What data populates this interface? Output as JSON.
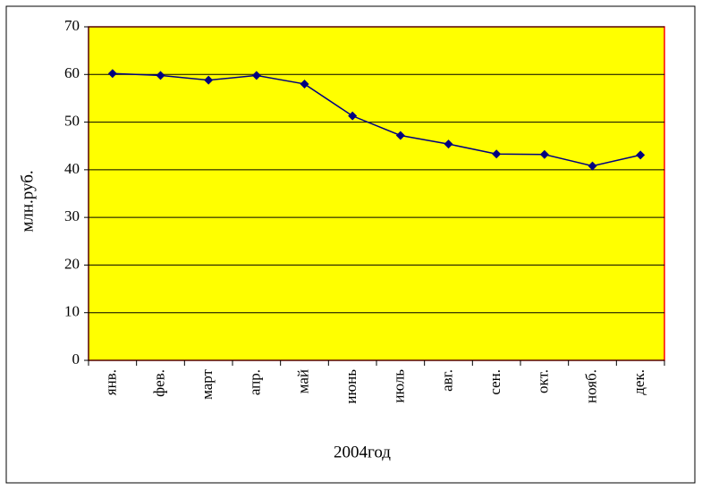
{
  "chart_data": {
    "type": "line",
    "y_label": "млн.руб.",
    "x_label": "2004год",
    "categories": [
      "янв.",
      "фев.",
      "март",
      "апр.",
      "май",
      "июнь",
      "июль",
      "авг.",
      "сен.",
      "окт.",
      "нояб.",
      "дек."
    ],
    "values": [
      60.2,
      59.8,
      58.8,
      59.8,
      58.0,
      51.3,
      47.2,
      45.4,
      43.3,
      43.2,
      40.8,
      43.1
    ],
    "color": "#000080",
    "plot_color": "#ffff00",
    "ylim": [
      0,
      70
    ],
    "yticks": [
      0,
      10,
      20,
      30,
      40,
      50,
      60,
      70
    ],
    "grid": true
  }
}
